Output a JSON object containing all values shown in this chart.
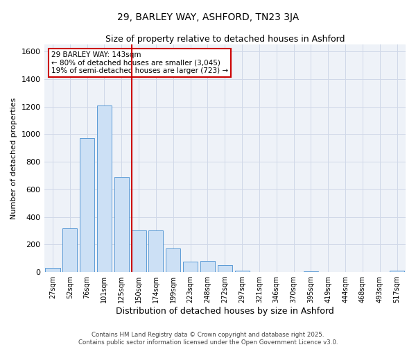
{
  "title1": "29, BARLEY WAY, ASHFORD, TN23 3JA",
  "title2": "Size of property relative to detached houses in Ashford",
  "xlabel": "Distribution of detached houses by size in Ashford",
  "ylabel": "Number of detached properties",
  "categories": [
    "27sqm",
    "52sqm",
    "76sqm",
    "101sqm",
    "125sqm",
    "150sqm",
    "174sqm",
    "199sqm",
    "223sqm",
    "248sqm",
    "272sqm",
    "297sqm",
    "321sqm",
    "346sqm",
    "370sqm",
    "395sqm",
    "419sqm",
    "444sqm",
    "468sqm",
    "493sqm",
    "517sqm"
  ],
  "values": [
    30,
    315,
    970,
    1210,
    690,
    300,
    300,
    170,
    75,
    80,
    50,
    10,
    0,
    0,
    0,
    5,
    0,
    0,
    0,
    0,
    10
  ],
  "bar_color": "#cce0f5",
  "bar_edge_color": "#5b9bd5",
  "vline_color": "#cc0000",
  "annotation_text": "29 BARLEY WAY: 143sqm\n← 80% of detached houses are smaller (3,045)\n19% of semi-detached houses are larger (723) →",
  "annotation_box_color": "#cc0000",
  "ylim": [
    0,
    1650
  ],
  "yticks": [
    0,
    200,
    400,
    600,
    800,
    1000,
    1200,
    1400,
    1600
  ],
  "grid_color": "#d0d8e8",
  "background_color": "#eef2f8",
  "footer1": "Contains HM Land Registry data © Crown copyright and database right 2025.",
  "footer2": "Contains public sector information licensed under the Open Government Licence v3.0."
}
